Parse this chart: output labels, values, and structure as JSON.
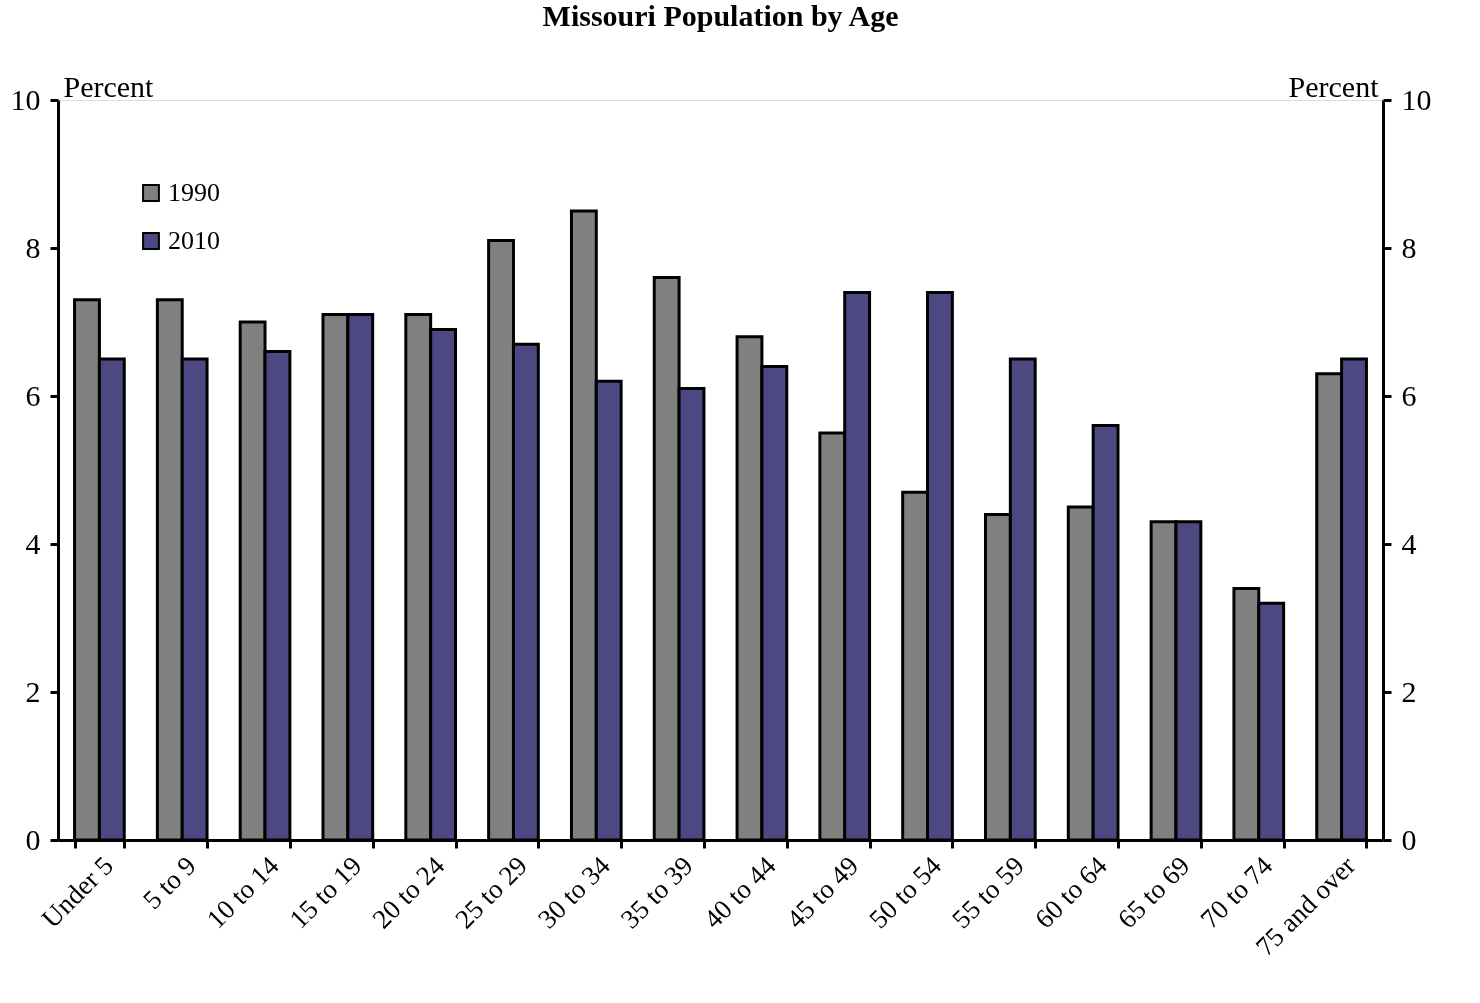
{
  "chart_data": {
    "type": "bar",
    "title": "Missouri Population by Age",
    "ylabel": "Percent",
    "y2label": "Percent",
    "categories": [
      "Under 5",
      "5 to 9",
      "10 to 14",
      "15 to 19",
      "20 to 24",
      "25 to 29",
      "30 to 34",
      "35 to 39",
      "40 to 44",
      "45 to 49",
      "50 to 54",
      "55 to 59",
      "60 to 64",
      "65 to 69",
      "70 to 74",
      "75 and over"
    ],
    "series": [
      {
        "name": "1990",
        "color": "#808080",
        "values": [
          7.3,
          7.3,
          7.0,
          7.1,
          7.1,
          8.1,
          8.5,
          7.6,
          6.8,
          5.5,
          4.7,
          4.4,
          4.5,
          4.3,
          3.4,
          6.3
        ]
      },
      {
        "name": "2010",
        "color": "#4b4882",
        "values": [
          6.5,
          6.5,
          6.6,
          7.1,
          6.9,
          6.7,
          6.2,
          6.1,
          6.4,
          7.4,
          7.4,
          6.5,
          5.6,
          4.3,
          3.2,
          6.5
        ]
      }
    ],
    "ylim": [
      0,
      10
    ],
    "yticks": [
      0,
      2,
      4,
      6,
      8,
      10
    ],
    "y2lim": [
      0,
      10
    ],
    "y2ticks": [
      0,
      2,
      4,
      6,
      8,
      10
    ],
    "grid": false,
    "legend": "top left"
  }
}
